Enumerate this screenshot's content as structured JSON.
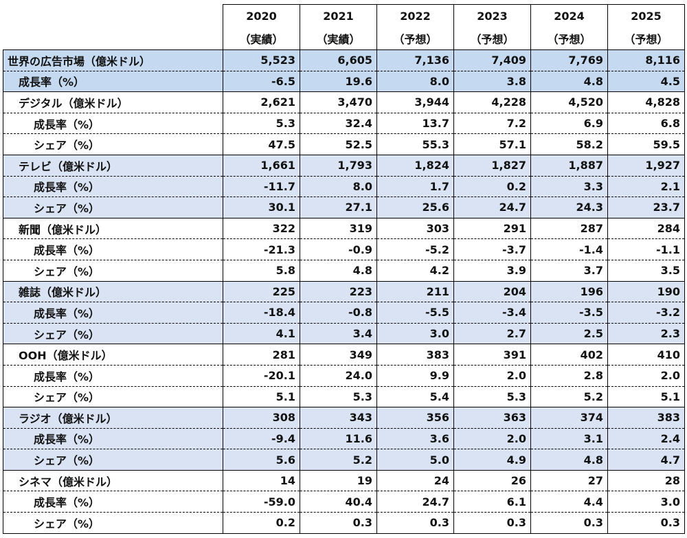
{
  "header": {
    "years": [
      "2020",
      "2021",
      "2022",
      "2023",
      "2024",
      "2025"
    ],
    "types": [
      "（実績）",
      "（実績）",
      "（予想）",
      "（予想）",
      "（予想）",
      "（予想）"
    ]
  },
  "rows": [
    {
      "label": "世界の広告市場（億米ドル）",
      "values": [
        "5,523",
        "6,605",
        "7,136",
        "7,409",
        "7,769",
        "8,116"
      ]
    },
    {
      "label": "成長率（%）",
      "values": [
        "-6.5",
        "19.6",
        "8.0",
        "3.8",
        "4.8",
        "4.5"
      ]
    },
    {
      "label": "デジタル（億米ドル）",
      "values": [
        "2,621",
        "3,470",
        "3,944",
        "4,228",
        "4,520",
        "4,828"
      ]
    },
    {
      "label": "成長率（%）",
      "values": [
        "5.3",
        "32.4",
        "13.7",
        "7.2",
        "6.9",
        "6.8"
      ]
    },
    {
      "label": "シェア（%）",
      "values": [
        "47.5",
        "52.5",
        "55.3",
        "57.1",
        "58.2",
        "59.5"
      ]
    },
    {
      "label": "テレビ（億米ドル）",
      "values": [
        "1,661",
        "1,793",
        "1,824",
        "1,827",
        "1,887",
        "1,927"
      ]
    },
    {
      "label": "成長率（%）",
      "values": [
        "-11.7",
        "8.0",
        "1.7",
        "0.2",
        "3.3",
        "2.1"
      ]
    },
    {
      "label": "シェア（%）",
      "values": [
        "30.1",
        "27.1",
        "25.6",
        "24.7",
        "24.3",
        "23.7"
      ]
    },
    {
      "label": "新聞（億米ドル）",
      "values": [
        "322",
        "319",
        "303",
        "291",
        "287",
        "284"
      ]
    },
    {
      "label": "成長率（%）",
      "values": [
        "-21.3",
        "-0.9",
        "-5.2",
        "-3.7",
        "-1.4",
        "-1.1"
      ]
    },
    {
      "label": "シェア（%）",
      "values": [
        "5.8",
        "4.8",
        "4.2",
        "3.9",
        "3.7",
        "3.5"
      ]
    },
    {
      "label": "雑誌（億米ドル）",
      "values": [
        "225",
        "223",
        "211",
        "204",
        "196",
        "190"
      ]
    },
    {
      "label": "成長率（%）",
      "values": [
        "-18.4",
        "-0.8",
        "-5.5",
        "-3.4",
        "-3.5",
        "-3.2"
      ]
    },
    {
      "label": "シェア（%）",
      "values": [
        "4.1",
        "3.4",
        "3.0",
        "2.7",
        "2.5",
        "2.3"
      ]
    },
    {
      "label": "OOH（億米ドル）",
      "values": [
        "281",
        "349",
        "383",
        "391",
        "402",
        "410"
      ]
    },
    {
      "label": "成長率（%）",
      "values": [
        "-20.1",
        "24.0",
        "9.9",
        "2.0",
        "2.8",
        "2.0"
      ]
    },
    {
      "label": "シェア（%）",
      "values": [
        "5.1",
        "5.3",
        "5.4",
        "5.3",
        "5.2",
        "5.1"
      ]
    },
    {
      "label": "ラジオ（億米ドル）",
      "values": [
        "308",
        "343",
        "356",
        "363",
        "374",
        "383"
      ]
    },
    {
      "label": "成長率（%）",
      "values": [
        "-9.4",
        "11.6",
        "3.6",
        "2.0",
        "3.1",
        "2.4"
      ]
    },
    {
      "label": "シェア（%）",
      "values": [
        "5.6",
        "5.2",
        "5.0",
        "4.9",
        "4.8",
        "4.7"
      ]
    },
    {
      "label": "シネマ（億米ドル）",
      "values": [
        "14",
        "19",
        "24",
        "26",
        "27",
        "28"
      ]
    },
    {
      "label": "成長率（%）",
      "values": [
        "-59.0",
        "40.4",
        "24.7",
        "6.1",
        "4.4",
        "3.0"
      ]
    },
    {
      "label": "シェア（%）",
      "values": [
        "0.2",
        "0.3",
        "0.3",
        "0.3",
        "0.3",
        "0.3"
      ]
    }
  ]
}
